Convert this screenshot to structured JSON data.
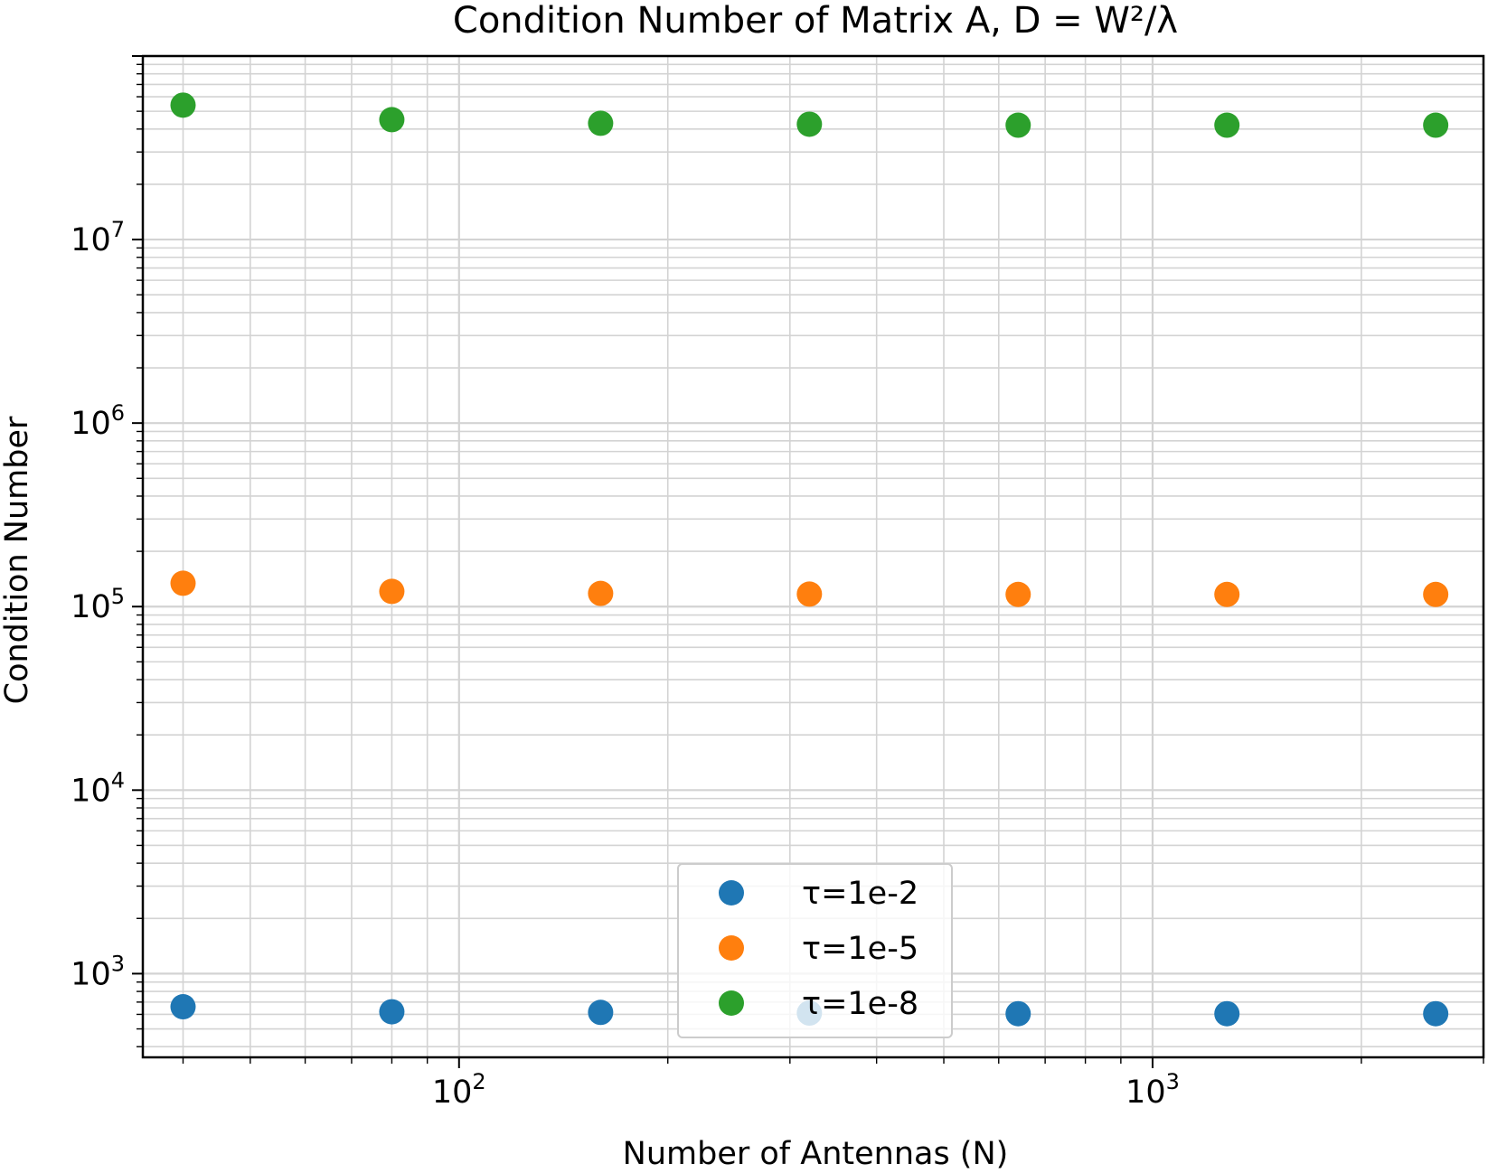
{
  "chart_data": {
    "type": "scatter",
    "title": "Condition Number of Matrix A, D = W²/λ",
    "xlabel": "Number of Antennas (N)",
    "ylabel": "Condition Number",
    "x_scale": "log",
    "y_scale": "log",
    "xlim": [
      35,
      3000
    ],
    "ylim": [
      350,
      100000000
    ],
    "x_ticks": [
      {
        "value": 100,
        "base": "10",
        "exp": "2"
      },
      {
        "value": 1000,
        "base": "10",
        "exp": "3"
      }
    ],
    "y_ticks": [
      {
        "value": 1000,
        "base": "10",
        "exp": "3"
      },
      {
        "value": 10000,
        "base": "10",
        "exp": "4"
      },
      {
        "value": 100000,
        "base": "10",
        "exp": "5"
      },
      {
        "value": 1000000,
        "base": "10",
        "exp": "6"
      },
      {
        "value": 10000000,
        "base": "10",
        "exp": "7"
      }
    ],
    "grid": "major and minor",
    "legend_position": "lower-center",
    "x": [
      40,
      80,
      160,
      320,
      640,
      1280,
      2560
    ],
    "series": [
      {
        "name": "τ=1e-2",
        "color": "#1f77b4",
        "values": [
          660,
          620,
          615,
          610,
          605,
          605,
          605
        ]
      },
      {
        "name": "τ=1e-5",
        "color": "#ff7f0e",
        "values": [
          134000,
          121000,
          118000,
          117000,
          116500,
          116500,
          116500
        ]
      },
      {
        "name": "τ=1e-8",
        "color": "#2ca02c",
        "values": [
          54000000,
          45000000,
          43000000,
          42500000,
          42000000,
          42000000,
          42000000
        ]
      }
    ]
  }
}
